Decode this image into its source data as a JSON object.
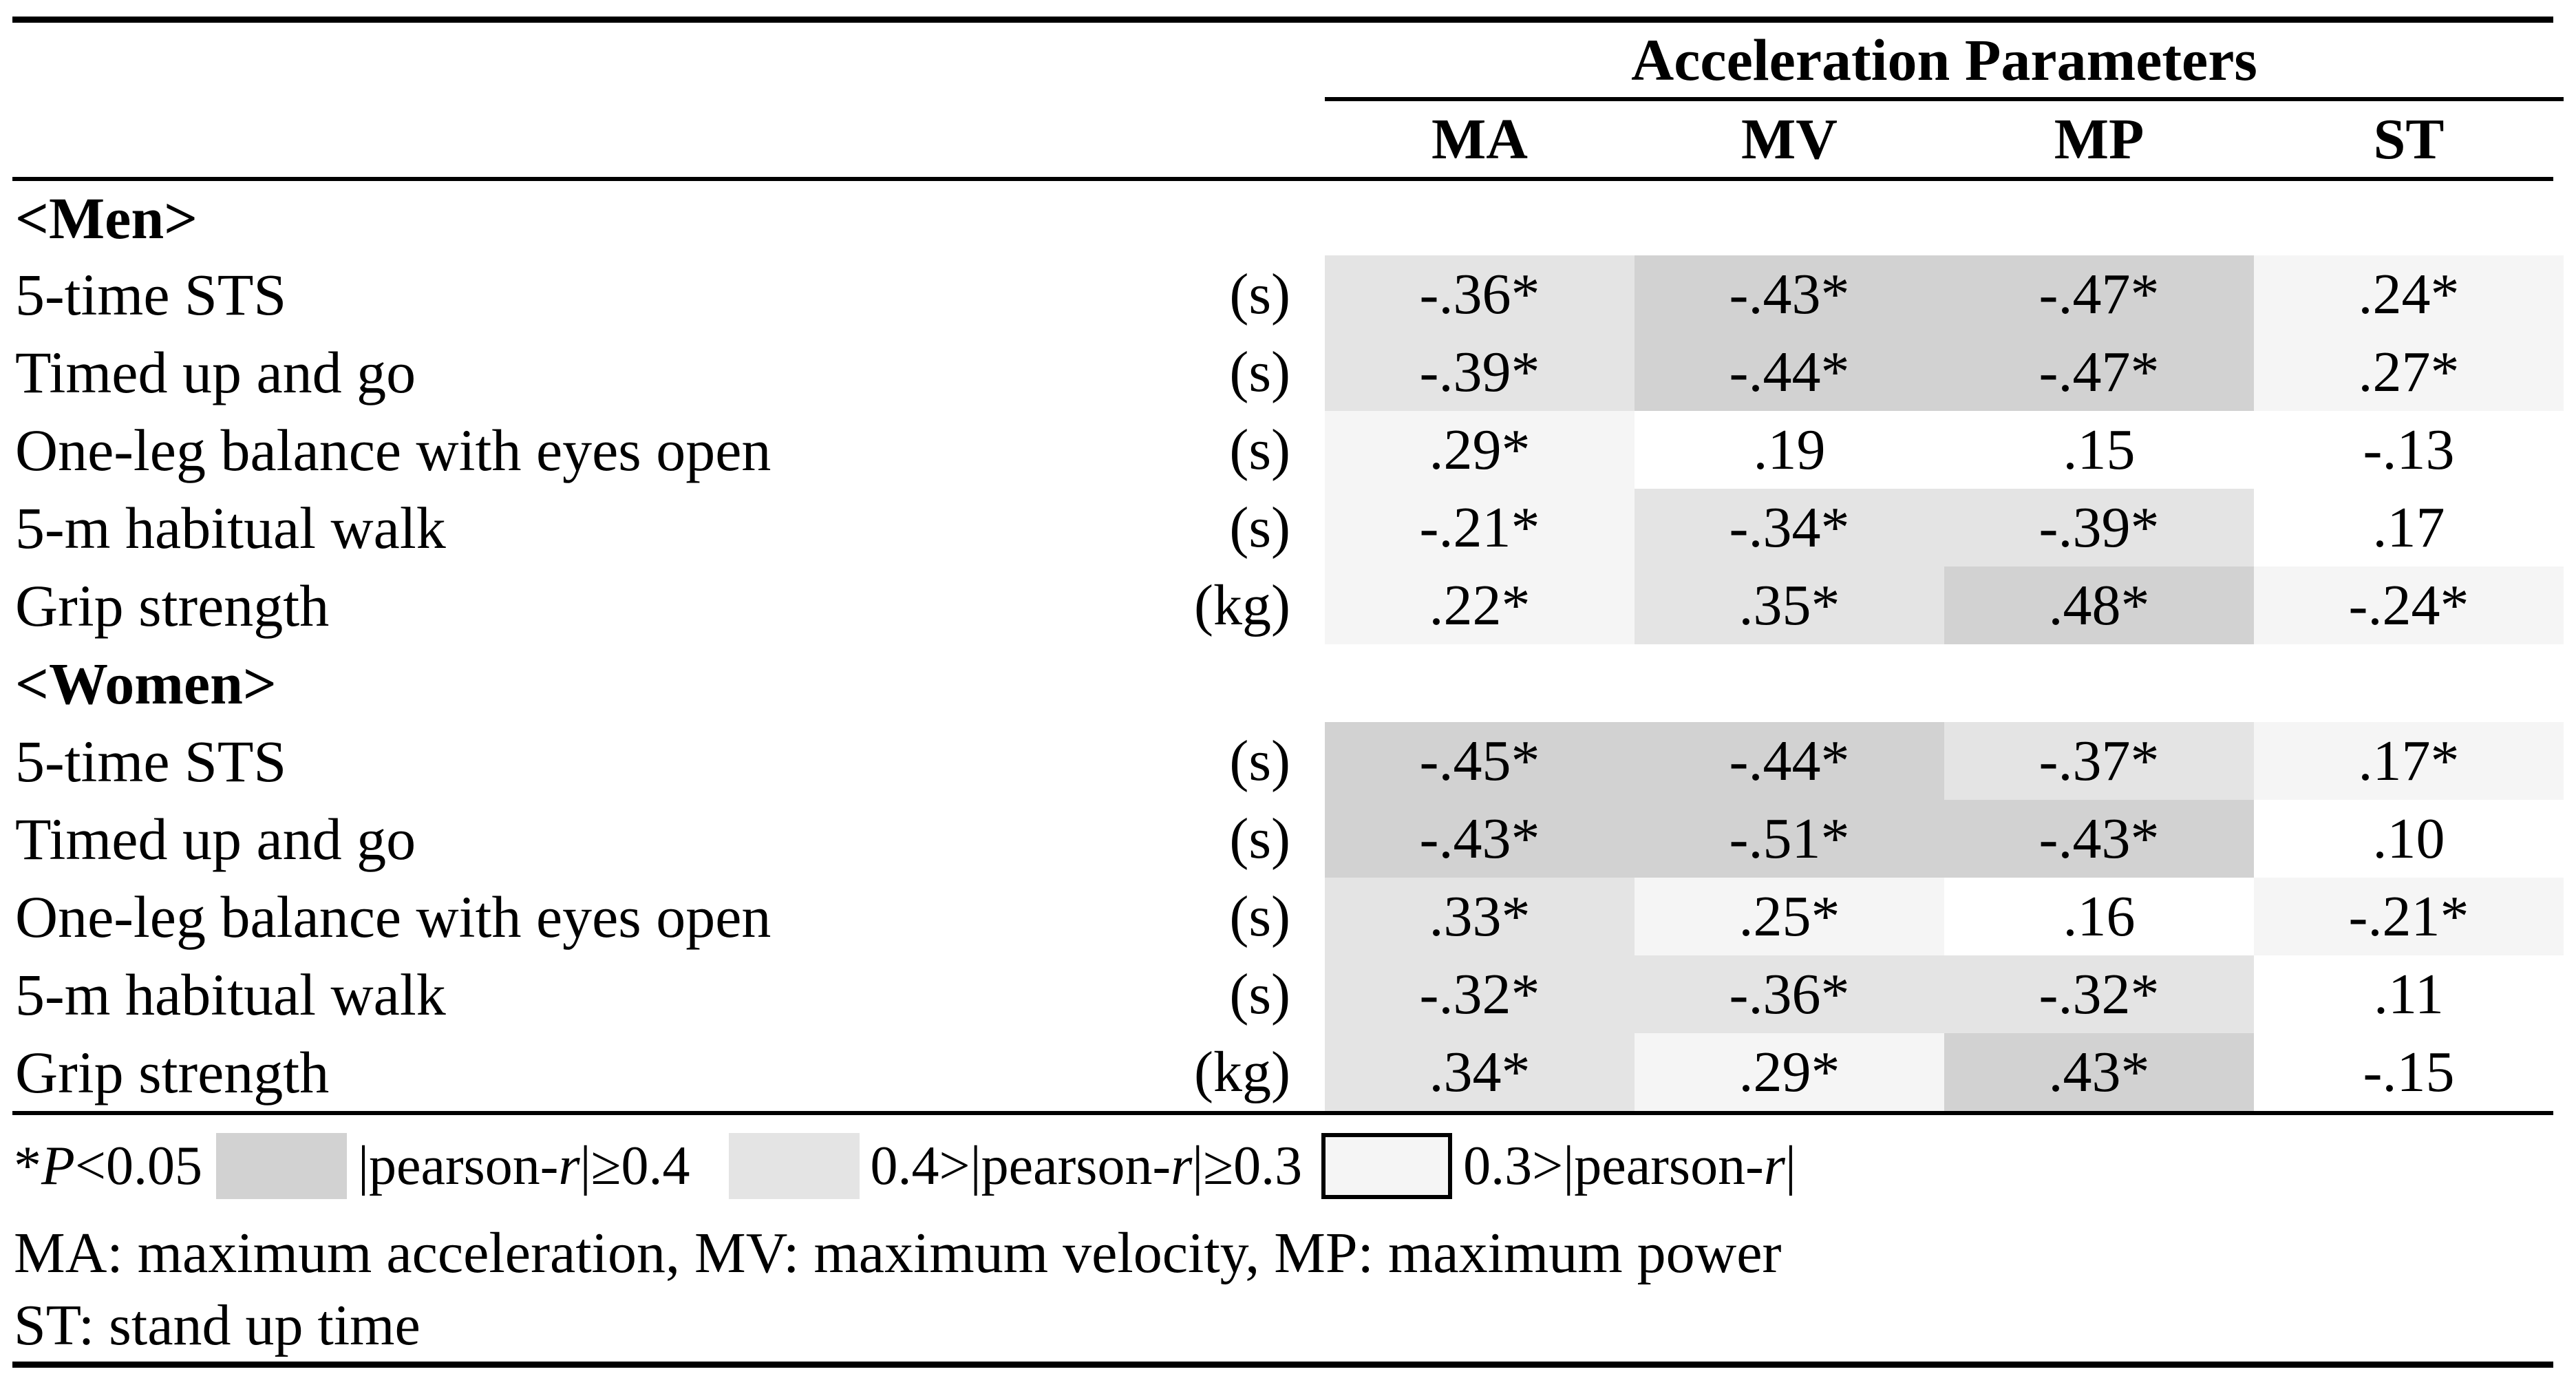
{
  "title": "Acceleration Parameters",
  "columns": [
    "MA",
    "MV",
    "MP",
    "ST"
  ],
  "colors": {
    "dark": "#d2d2d2",
    "light": "#e4e4e4",
    "faint": "#f5f5f5",
    "none": "#ffffff"
  },
  "sections": [
    {
      "header": "<Men>",
      "rows": [
        {
          "label": "5-time STS",
          "unit": "(s)",
          "cells": [
            {
              "v": "-.36*",
              "s": "light"
            },
            {
              "v": "-.43*",
              "s": "dark"
            },
            {
              "v": "-.47*",
              "s": "dark"
            },
            {
              "v": ".24*",
              "s": "faint"
            }
          ]
        },
        {
          "label": "Timed up and go",
          "unit": "(s)",
          "cells": [
            {
              "v": "-.39*",
              "s": "light"
            },
            {
              "v": "-.44*",
              "s": "dark"
            },
            {
              "v": "-.47*",
              "s": "dark"
            },
            {
              "v": ".27*",
              "s": "faint"
            }
          ]
        },
        {
          "label": "One-leg balance with eyes open",
          "unit": "(s)",
          "cells": [
            {
              "v": ".29*",
              "s": "faint"
            },
            {
              "v": ".19",
              "s": "none"
            },
            {
              "v": ".15",
              "s": "none"
            },
            {
              "v": "-.13",
              "s": "none"
            }
          ]
        },
        {
          "label": "5-m habitual walk",
          "unit": "(s)",
          "cells": [
            {
              "v": "-.21*",
              "s": "faint"
            },
            {
              "v": "-.34*",
              "s": "light"
            },
            {
              "v": "-.39*",
              "s": "light"
            },
            {
              "v": ".17",
              "s": "none"
            }
          ]
        },
        {
          "label": "Grip strength",
          "unit": "(kg)",
          "cells": [
            {
              "v": ".22*",
              "s": "faint"
            },
            {
              "v": ".35*",
              "s": "light"
            },
            {
              "v": ".48*",
              "s": "dark"
            },
            {
              "v": "-.24*",
              "s": "faint"
            }
          ]
        }
      ]
    },
    {
      "header": "<Women>",
      "rows": [
        {
          "label": "5-time STS",
          "unit": "(s)",
          "cells": [
            {
              "v": "-.45*",
              "s": "dark"
            },
            {
              "v": "-.44*",
              "s": "dark"
            },
            {
              "v": "-.37*",
              "s": "light"
            },
            {
              "v": ".17*",
              "s": "faint"
            }
          ]
        },
        {
          "label": "Timed up and go",
          "unit": "(s)",
          "cells": [
            {
              "v": "-.43*",
              "s": "dark"
            },
            {
              "v": "-.51*",
              "s": "dark"
            },
            {
              "v": "-.43*",
              "s": "dark"
            },
            {
              "v": ".10",
              "s": "none"
            }
          ]
        },
        {
          "label": "One-leg balance with eyes open",
          "unit": "(s)",
          "cells": [
            {
              "v": ".33*",
              "s": "light"
            },
            {
              "v": ".25*",
              "s": "faint"
            },
            {
              "v": ".16",
              "s": "none"
            },
            {
              "v": "-.21*",
              "s": "faint"
            }
          ]
        },
        {
          "label": "5-m habitual walk",
          "unit": "(s)",
          "cells": [
            {
              "v": "-.32*",
              "s": "light"
            },
            {
              "v": "-.36*",
              "s": "light"
            },
            {
              "v": "-.32*",
              "s": "light"
            },
            {
              "v": ".11",
              "s": "none"
            }
          ]
        },
        {
          "label": "Grip strength",
          "unit": "(kg)",
          "cells": [
            {
              "v": ".34*",
              "s": "light"
            },
            {
              "v": ".29*",
              "s": "faint"
            },
            {
              "v": ".43*",
              "s": "dark"
            },
            {
              "v": "-.15",
              "s": "none"
            }
          ]
        }
      ]
    }
  ],
  "legend": {
    "sig": {
      "star": "*",
      "p": "P",
      "rest": "<0.05"
    },
    "items": [
      {
        "shade": "dark",
        "pre": "|pearson-",
        "r": "r",
        "post": "|≥0.4",
        "bordered": false
      },
      {
        "shade": "light",
        "pre": "0.4>|pearson-",
        "r": "r",
        "post": "|≥0.3",
        "bordered": false
      },
      {
        "shade": "faint",
        "pre": "0.3>|pearson-",
        "r": "r",
        "post": "|",
        "bordered": true
      }
    ]
  },
  "footnotes": [
    "MA: maximum acceleration, MV: maximum velocity, MP: maximum power",
    "ST: stand up time"
  ]
}
